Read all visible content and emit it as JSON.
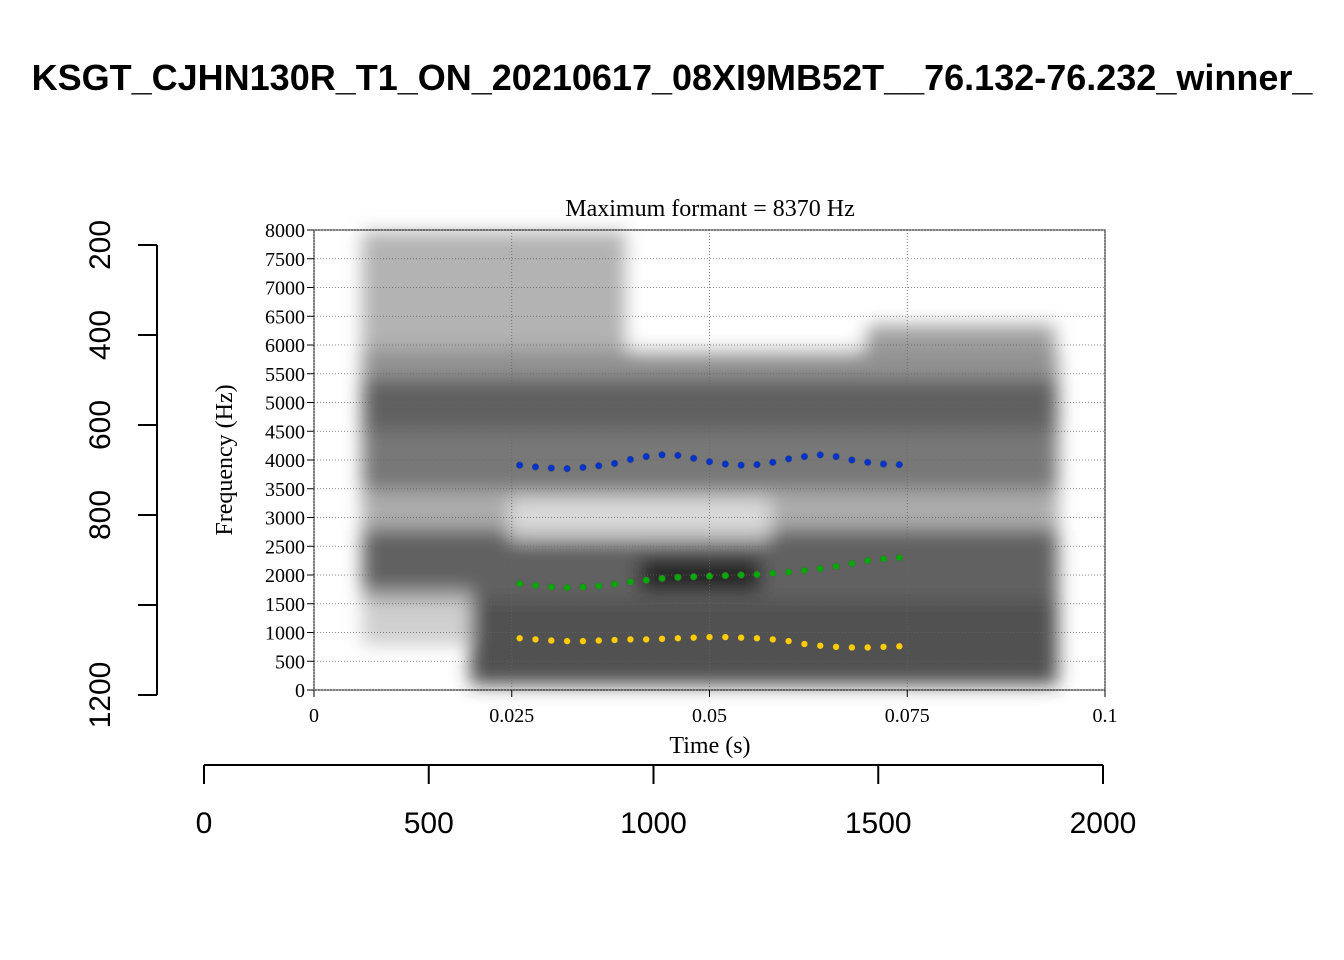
{
  "chart_data": [
    {
      "type": "axes",
      "title": "KSGT_CJHN130R_T1_ON_20210617_08XI9MB52T__76.132-76.232_winner_",
      "xlim": [
        0,
        2000
      ],
      "xticks": [
        0,
        500,
        1000,
        1500,
        2000
      ],
      "ylim": [
        200,
        1200
      ],
      "yreverse": true,
      "yticks": [
        200,
        400,
        600,
        800,
        {
          "value": 1000,
          "label": null
        },
        1200
      ]
    },
    {
      "type": "scatter",
      "title": "Maximum formant = 8370 Hz",
      "xlabel": "Time (s)",
      "ylabel": "Frequency (Hz)",
      "xlim": [
        0,
        0.1
      ],
      "xticks": [
        0,
        0.025,
        0.05,
        0.075,
        0.1
      ],
      "ylim": [
        0,
        8000
      ],
      "yticks": [
        0,
        500,
        1000,
        1500,
        2000,
        2500,
        3000,
        3500,
        4000,
        4500,
        5000,
        5500,
        6000,
        6500,
        7000,
        7500,
        8000
      ],
      "grid": true,
      "x": [
        0.026,
        0.028,
        0.03,
        0.032,
        0.034,
        0.036,
        0.038,
        0.04,
        0.042,
        0.044,
        0.046,
        0.048,
        0.05,
        0.052,
        0.054,
        0.056,
        0.058,
        0.06,
        0.062,
        0.064,
        0.066,
        0.068,
        0.07,
        0.072,
        0.074
      ],
      "series": [
        {
          "color": "#ffcc00",
          "values": [
            900,
            880,
            860,
            850,
            850,
            860,
            870,
            880,
            880,
            890,
            900,
            910,
            920,
            920,
            910,
            900,
            880,
            850,
            800,
            770,
            750,
            740,
            740,
            750,
            760
          ]
        },
        {
          "color": "#00aa00",
          "values": [
            1850,
            1820,
            1790,
            1780,
            1790,
            1810,
            1840,
            1880,
            1910,
            1940,
            1960,
            1970,
            1980,
            1990,
            2000,
            2010,
            2030,
            2050,
            2080,
            2110,
            2150,
            2200,
            2250,
            2280,
            2300
          ]
        },
        {
          "color": "#0033cc",
          "values": [
            3910,
            3880,
            3860,
            3850,
            3870,
            3900,
            3940,
            4010,
            4060,
            4090,
            4080,
            4030,
            3970,
            3930,
            3910,
            3920,
            3960,
            4020,
            4060,
            4090,
            4060,
            4000,
            3960,
            3930,
            3920
          ]
        }
      ]
    }
  ]
}
